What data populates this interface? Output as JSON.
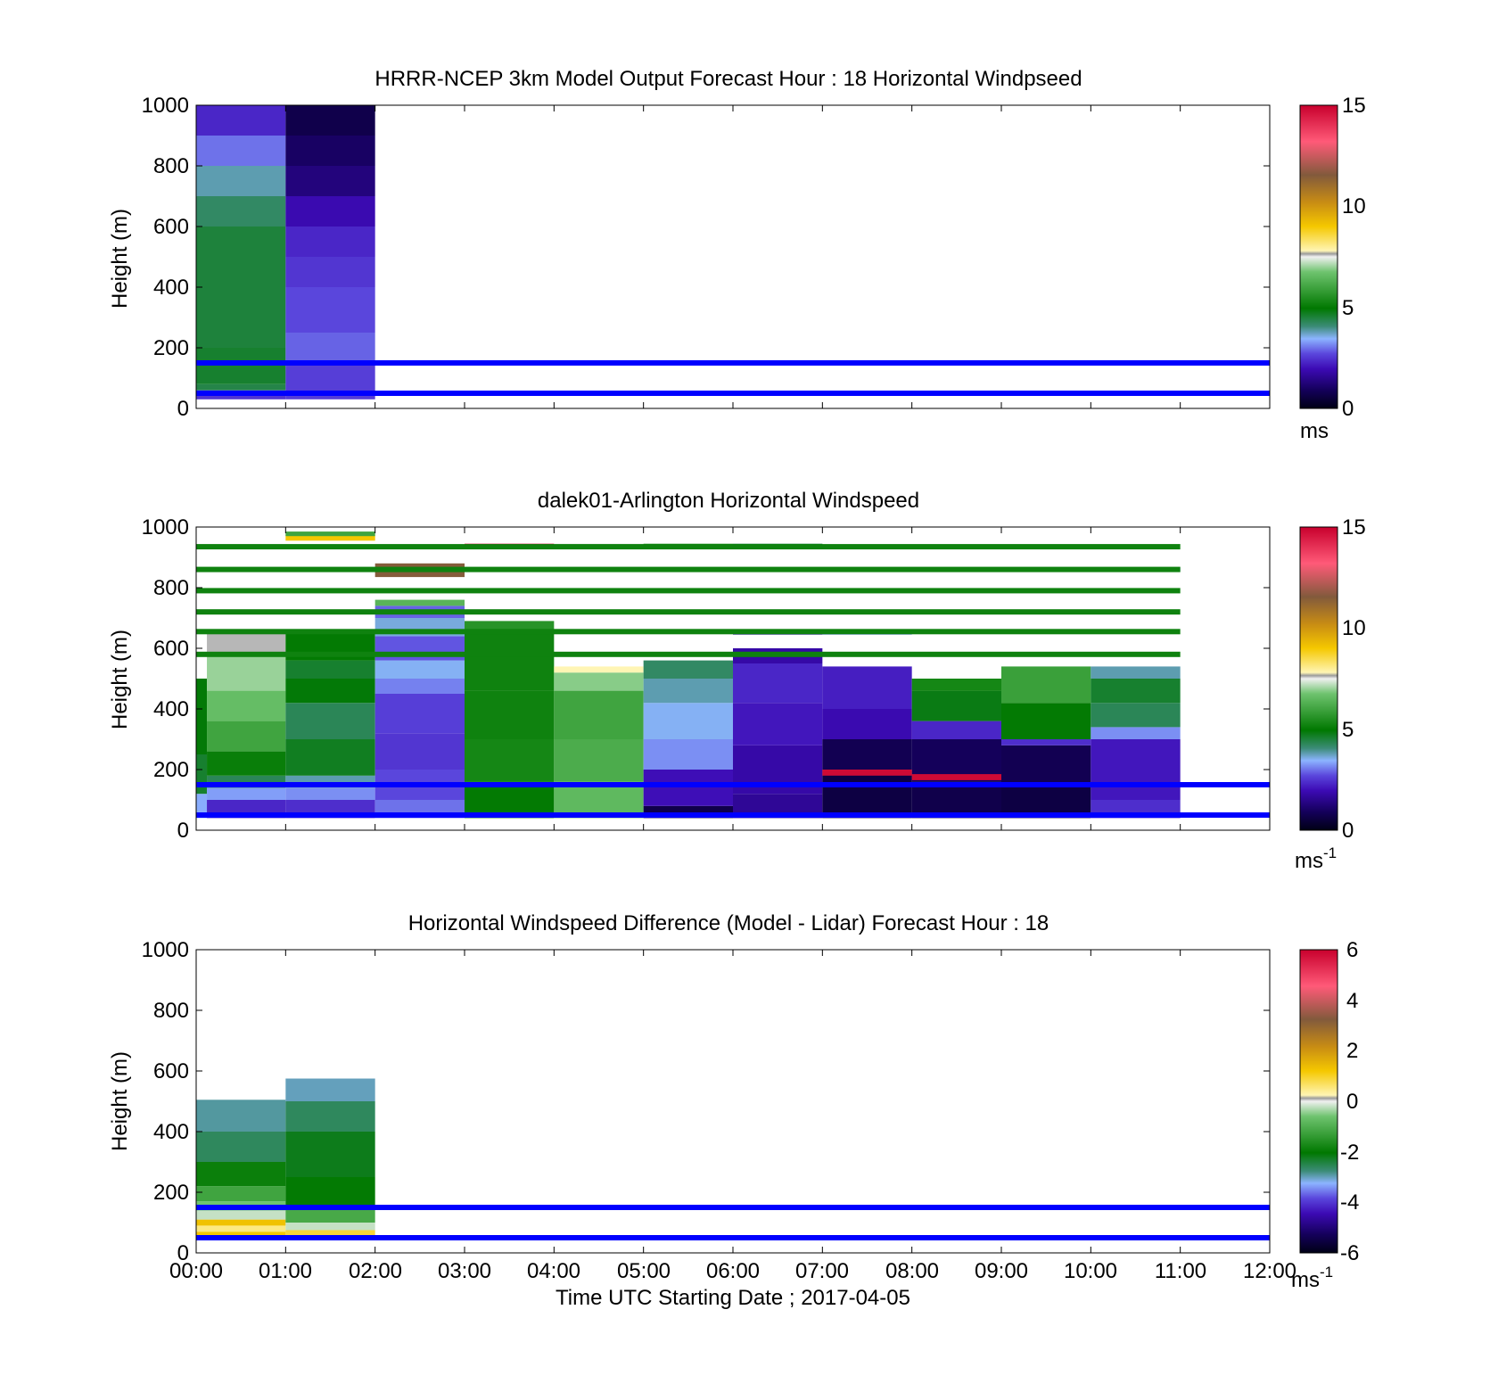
{
  "xlabel": "Time UTC  Starting Date ; 2017-04-05",
  "chart_data": [
    {
      "type": "heatmap",
      "title": "HRRR-NCEP 3km Model Output   Forecast Hour : 18 Horizontal Windpseed",
      "ylabel": "Height (m)",
      "ylim": [
        0,
        1000
      ],
      "xlim": [
        "00:00",
        "12:00"
      ],
      "yticks": [
        "0",
        "200",
        "400",
        "600",
        "800",
        "1000"
      ],
      "xticks": [
        "00:00",
        "01:00",
        "02:00",
        "03:00",
        "04:00",
        "05:00",
        "06:00",
        "07:00",
        "08:00",
        "09:00",
        "10:00",
        "11:00",
        "12:00"
      ],
      "show_xticklabels": false,
      "colorbar": {
        "min": 0,
        "max": 15,
        "ticks": [
          "0",
          "5",
          "10",
          "15"
        ],
        "unit": "ms",
        "unit_sup": ""
      },
      "reference_lines": [
        150,
        50
      ],
      "columns": [
        {
          "start": 0,
          "end": 1,
          "bins": [
            [
              30,
              45,
              2.5
            ],
            [
              45,
              60,
              3.0
            ],
            [
              60,
              80,
              4.4
            ],
            [
              80,
              200,
              4.6
            ],
            [
              200,
              600,
              4.5
            ],
            [
              600,
              700,
              4.2
            ],
            [
              700,
              800,
              3.8
            ],
            [
              800,
              900,
              3.0
            ],
            [
              900,
              1000,
              2.3
            ]
          ]
        },
        {
          "start": 1,
          "end": 2,
          "bins": [
            [
              30,
              150,
              2.6
            ],
            [
              150,
              250,
              2.9
            ],
            [
              250,
              400,
              2.7
            ],
            [
              400,
              500,
              2.5
            ],
            [
              500,
              600,
              2.3
            ],
            [
              600,
              700,
              1.9
            ],
            [
              700,
              800,
              1.3
            ],
            [
              800,
              900,
              1.0
            ],
            [
              900,
              1000,
              0.7
            ]
          ]
        }
      ]
    },
    {
      "type": "heatmap",
      "title": "dalek01-Arlington  Horizontal Windspeed",
      "ylabel": "Height (m)",
      "ylim": [
        0,
        1000
      ],
      "xlim": [
        "00:00",
        "12:00"
      ],
      "yticks": [
        "0",
        "200",
        "400",
        "600",
        "800",
        "1000"
      ],
      "xticks": [
        "00:00",
        "01:00",
        "02:00",
        "03:00",
        "04:00",
        "05:00",
        "06:00",
        "07:00",
        "08:00",
        "09:00",
        "10:00",
        "11:00",
        "12:00"
      ],
      "show_xticklabels": false,
      "colorbar": {
        "min": 0,
        "max": 15,
        "ticks": [
          "0",
          "5",
          "10",
          "15"
        ],
        "unit": "ms",
        "unit_sup": "-1"
      },
      "reference_lines": [
        150,
        50
      ],
      "columns": [
        {
          "start": 0,
          "end": 0.12,
          "bins": [
            [
              40,
              120,
              3.4
            ],
            [
              120,
              250,
              4.6
            ],
            [
              250,
              500,
              4.9
            ]
          ]
        },
        {
          "start": 0.12,
          "end": 1,
          "bins": [
            [
              40,
              100,
              2.3
            ],
            [
              100,
              140,
              3.3
            ],
            [
              140,
              180,
              4.3
            ],
            [
              180,
              260,
              5.1
            ],
            [
              260,
              360,
              6.0
            ],
            [
              360,
              460,
              6.6
            ],
            [
              460,
              580,
              7.0
            ],
            [
              580,
              650,
              7.6
            ]
          ]
        },
        {
          "start": 1,
          "end": 2,
          "bins": [
            [
              40,
              100,
              2.4
            ],
            [
              100,
              140,
              3.2
            ],
            [
              140,
              180,
              3.8
            ],
            [
              180,
              300,
              4.7
            ],
            [
              300,
              420,
              4.3
            ],
            [
              420,
              500,
              4.9
            ],
            [
              500,
              560,
              4.6
            ],
            [
              560,
              660,
              5.0
            ]
          ]
        },
        {
          "start": 2,
          "end": 3,
          "bins": [
            [
              40,
              100,
              3.0
            ],
            [
              100,
              200,
              2.7
            ],
            [
              200,
              320,
              2.5
            ],
            [
              320,
              450,
              2.6
            ],
            [
              450,
              500,
              3.1
            ],
            [
              500,
              560,
              3.5
            ],
            [
              560,
              640,
              2.8
            ],
            [
              640,
              700,
              3.6
            ],
            [
              700,
              740,
              2.9
            ],
            [
              740,
              760,
              6.4
            ]
          ]
        },
        {
          "start": 3,
          "end": 4,
          "bins": [
            [
              40,
              160,
              5.0
            ],
            [
              160,
              300,
              5.3
            ],
            [
              300,
              460,
              5.2
            ],
            [
              460,
              650,
              5.2
            ],
            [
              650,
              690,
              5.6
            ]
          ]
        },
        {
          "start": 4,
          "end": 5,
          "bins": [
            [
              40,
              160,
              6.5
            ],
            [
              160,
              300,
              6.2
            ],
            [
              300,
              460,
              6.0
            ],
            [
              460,
              520,
              6.9
            ],
            [
              520,
              540,
              7.8
            ]
          ]
        },
        {
          "start": 5,
          "end": 6,
          "bins": [
            [
              40,
              80,
              0.7
            ],
            [
              80,
              200,
              2.0
            ],
            [
              200,
              300,
              3.2
            ],
            [
              300,
              420,
              3.5
            ],
            [
              420,
              500,
              3.8
            ],
            [
              500,
              560,
              4.2
            ]
          ]
        },
        {
          "start": 6,
          "end": 7,
          "bins": [
            [
              40,
              120,
              1.6
            ],
            [
              120,
              280,
              1.8
            ],
            [
              280,
              420,
              2.1
            ],
            [
              420,
              550,
              2.3
            ],
            [
              550,
              600,
              1.8
            ]
          ]
        },
        {
          "start": 7,
          "end": 8,
          "bins": [
            [
              40,
              100,
              0.6
            ],
            [
              100,
              200,
              0.6
            ],
            [
              200,
              300,
              0.8
            ],
            [
              300,
              400,
              1.9
            ],
            [
              400,
              540,
              2.2
            ]
          ]
        },
        {
          "start": 8,
          "end": 9,
          "bins": [
            [
              40,
              160,
              0.7
            ],
            [
              160,
              300,
              0.9
            ],
            [
              300,
              360,
              2.3
            ],
            [
              360,
              460,
              4.8
            ],
            [
              460,
              500,
              5.3
            ]
          ]
        },
        {
          "start": 9,
          "end": 10,
          "bins": [
            [
              40,
              150,
              0.6
            ],
            [
              150,
              280,
              0.8
            ],
            [
              280,
              300,
              2.4
            ],
            [
              300,
              420,
              5.0
            ],
            [
              420,
              540,
              5.9
            ]
          ]
        },
        {
          "start": 10,
          "end": 11,
          "bins": [
            [
              40,
              100,
              2.4
            ],
            [
              100,
              300,
              2.1
            ],
            [
              300,
              340,
              3.2
            ],
            [
              340,
              420,
              4.3
            ],
            [
              420,
              500,
              4.6
            ],
            [
              500,
              540,
              3.8
            ]
          ]
        }
      ],
      "bands": [
        {
          "y": 935,
          "start": 0,
          "end": 11,
          "v": 5.2
        },
        {
          "y": 860,
          "start": 0,
          "end": 11,
          "v": 5.2
        },
        {
          "y": 790,
          "start": 0,
          "end": 11,
          "v": 5.2
        },
        {
          "y": 720,
          "start": 0,
          "end": 11,
          "v": 5.2
        },
        {
          "y": 655,
          "start": 0,
          "end": 11,
          "v": 5.2
        },
        {
          "y": 580,
          "start": 0,
          "end": 11,
          "v": 5.2
        }
      ],
      "patches": [
        {
          "start": 1,
          "end": 2,
          "y0": 955,
          "y1": 975,
          "v": 9.0
        },
        {
          "start": 1,
          "end": 2,
          "y0": 970,
          "y1": 985,
          "v": 6.0
        },
        {
          "start": 2,
          "end": 3,
          "y0": 835,
          "y1": 880,
          "v": 11.5
        },
        {
          "start": 3,
          "end": 4,
          "y0": 930,
          "y1": 945,
          "v": 14.8
        },
        {
          "start": 4,
          "end": 5,
          "y0": 930,
          "y1": 945,
          "v": 7.4
        },
        {
          "start": 4,
          "end": 5,
          "y0": 855,
          "y1": 868,
          "v": 7.6
        },
        {
          "start": 5,
          "end": 6,
          "y0": 930,
          "y1": 945,
          "v": 5.8
        },
        {
          "start": 6,
          "end": 7,
          "y0": 930,
          "y1": 945,
          "v": 4.4
        },
        {
          "start": 6,
          "end": 7,
          "y0": 853,
          "y1": 867,
          "v": 3.2
        },
        {
          "start": 6,
          "end": 7,
          "y0": 712,
          "y1": 728,
          "v": 2.7
        },
        {
          "start": 6,
          "end": 7,
          "y0": 645,
          "y1": 662,
          "v": 2.2
        },
        {
          "start": 7,
          "end": 8,
          "y0": 645,
          "y1": 662,
          "v": 3.2
        },
        {
          "start": 7,
          "end": 8,
          "y0": 180,
          "y1": 200,
          "v": 14.8
        },
        {
          "start": 8,
          "end": 9,
          "y0": 165,
          "y1": 185,
          "v": 14.8
        },
        {
          "start": 10,
          "end": 11,
          "y0": 853,
          "y1": 867,
          "v": 3.2
        }
      ]
    },
    {
      "type": "heatmap",
      "title": "Horizontal Windspeed Difference (Model - Lidar) Forecast Hour : 18",
      "ylabel": "Height (m)",
      "ylim": [
        0,
        1000
      ],
      "xlim": [
        "00:00",
        "12:00"
      ],
      "yticks": [
        "0",
        "200",
        "400",
        "600",
        "800",
        "1000"
      ],
      "xticks": [
        "00:00",
        "01:00",
        "02:00",
        "03:00",
        "04:00",
        "05:00",
        "06:00",
        "07:00",
        "08:00",
        "09:00",
        "10:00",
        "11:00",
        "12:00"
      ],
      "show_xticklabels": true,
      "colorbar": {
        "min": -6,
        "max": 6,
        "ticks": [
          "-6",
          "-4",
          "-2",
          "0",
          "2",
          "4",
          "6"
        ],
        "unit": "ms",
        "unit_sup": "-1"
      },
      "reference_lines": [
        150,
        50
      ],
      "columns": [
        {
          "start": 0,
          "end": 1,
          "bins": [
            [
              50,
              70,
              1.2
            ],
            [
              70,
              90,
              0.5
            ],
            [
              90,
              110,
              1.3
            ],
            [
              110,
              140,
              -0.2
            ],
            [
              140,
              170,
              -0.6
            ],
            [
              170,
              220,
              -1.2
            ],
            [
              220,
              300,
              -1.9
            ],
            [
              300,
              400,
              -2.6
            ],
            [
              400,
              505,
              -2.9
            ]
          ]
        },
        {
          "start": 1,
          "end": 2,
          "bins": [
            [
              50,
              75,
              0.9
            ],
            [
              75,
              100,
              -0.2
            ],
            [
              100,
              150,
              -1.1
            ],
            [
              150,
              250,
              -2.0
            ],
            [
              250,
              400,
              -2.2
            ],
            [
              400,
              500,
              -2.6
            ],
            [
              500,
              575,
              -3.0
            ]
          ]
        }
      ]
    }
  ]
}
